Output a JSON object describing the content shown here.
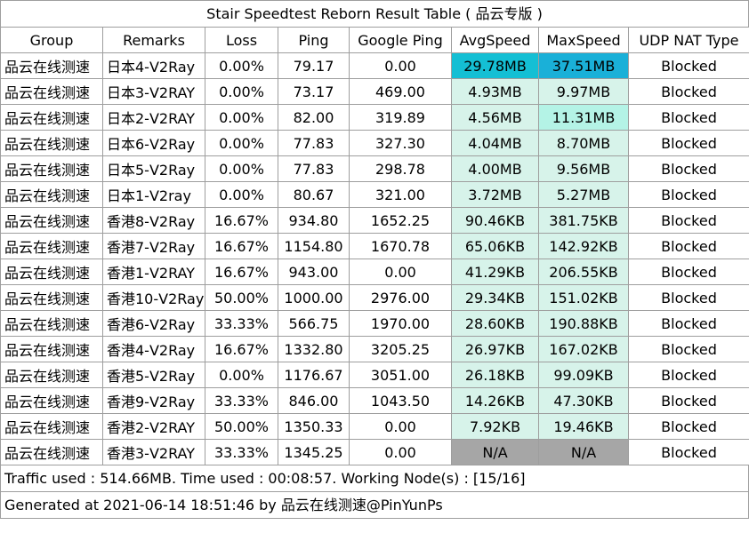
{
  "title": "Stair Speedtest Reborn Result Table ( 品云专版 )",
  "columns": [
    "Group",
    "Remarks",
    "Loss",
    "Ping",
    "Google Ping",
    "AvgSpeed",
    "MaxSpeed",
    "UDP NAT Type"
  ],
  "rows": [
    {
      "group": "品云在线测速",
      "remarks": "日本4-V2Ray",
      "loss": "0.00%",
      "ping": "79.17",
      "google_ping": "0.00",
      "avg_speed": "29.78MB",
      "avg_color": "#14bfd4",
      "max_speed": "37.51MB",
      "max_color": "#1ab0d8",
      "udp": "Blocked"
    },
    {
      "group": "品云在线测速",
      "remarks": "日本3-V2RAY",
      "loss": "0.00%",
      "ping": "73.17",
      "google_ping": "469.00",
      "avg_speed": "4.93MB",
      "avg_color": "#d7f3ea",
      "max_speed": "9.97MB",
      "max_color": "#d7f3ea",
      "udp": "Blocked"
    },
    {
      "group": "品云在线测速",
      "remarks": "日本2-V2RAY",
      "loss": "0.00%",
      "ping": "82.00",
      "google_ping": "319.89",
      "avg_speed": "4.56MB",
      "avg_color": "#d7f3ea",
      "max_speed": "11.31MB",
      "max_color": "#b4f3e6",
      "udp": "Blocked"
    },
    {
      "group": "品云在线测速",
      "remarks": "日本6-V2Ray",
      "loss": "0.00%",
      "ping": "77.83",
      "google_ping": "327.30",
      "avg_speed": "4.04MB",
      "avg_color": "#d7f3ea",
      "max_speed": "8.70MB",
      "max_color": "#d7f3ea",
      "udp": "Blocked"
    },
    {
      "group": "品云在线测速",
      "remarks": "日本5-V2Ray",
      "loss": "0.00%",
      "ping": "77.83",
      "google_ping": "298.78",
      "avg_speed": "4.00MB",
      "avg_color": "#d7f3ea",
      "max_speed": "9.56MB",
      "max_color": "#d7f3ea",
      "udp": "Blocked"
    },
    {
      "group": "品云在线测速",
      "remarks": "日本1-V2ray",
      "loss": "0.00%",
      "ping": "80.67",
      "google_ping": "321.00",
      "avg_speed": "3.72MB",
      "avg_color": "#d7f3ea",
      "max_speed": "5.27MB",
      "max_color": "#d7f3ea",
      "udp": "Blocked"
    },
    {
      "group": "品云在线测速",
      "remarks": "香港8-V2Ray",
      "loss": "16.67%",
      "ping": "934.80",
      "google_ping": "1652.25",
      "avg_speed": "90.46KB",
      "avg_color": "#d7f3ea",
      "max_speed": "381.75KB",
      "max_color": "#d7f3ea",
      "udp": "Blocked"
    },
    {
      "group": "品云在线测速",
      "remarks": "香港7-V2Ray",
      "loss": "16.67%",
      "ping": "1154.80",
      "google_ping": "1670.78",
      "avg_speed": "65.06KB",
      "avg_color": "#d7f3ea",
      "max_speed": "142.92KB",
      "max_color": "#d7f3ea",
      "udp": "Blocked"
    },
    {
      "group": "品云在线测速",
      "remarks": "香港1-V2RAY",
      "loss": "16.67%",
      "ping": "943.00",
      "google_ping": "0.00",
      "avg_speed": "41.29KB",
      "avg_color": "#d7f3ea",
      "max_speed": "206.55KB",
      "max_color": "#d7f3ea",
      "udp": "Blocked"
    },
    {
      "group": "品云在线测速",
      "remarks": "香港10-V2Ray",
      "loss": "50.00%",
      "ping": "1000.00",
      "google_ping": "2976.00",
      "avg_speed": "29.34KB",
      "avg_color": "#d7f3ea",
      "max_speed": "151.02KB",
      "max_color": "#d7f3ea",
      "udp": "Blocked"
    },
    {
      "group": "品云在线测速",
      "remarks": "香港6-V2Ray",
      "loss": "33.33%",
      "ping": "566.75",
      "google_ping": "1970.00",
      "avg_speed": "28.60KB",
      "avg_color": "#d7f3ea",
      "max_speed": "190.88KB",
      "max_color": "#d7f3ea",
      "udp": "Blocked"
    },
    {
      "group": "品云在线测速",
      "remarks": "香港4-V2Ray",
      "loss": "16.67%",
      "ping": "1332.80",
      "google_ping": "3205.25",
      "avg_speed": "26.97KB",
      "avg_color": "#d7f3ea",
      "max_speed": "167.02KB",
      "max_color": "#d7f3ea",
      "udp": "Blocked"
    },
    {
      "group": "品云在线测速",
      "remarks": "香港5-V2Ray",
      "loss": "0.00%",
      "ping": "1176.67",
      "google_ping": "3051.00",
      "avg_speed": "26.18KB",
      "avg_color": "#d7f3ea",
      "max_speed": "99.09KB",
      "max_color": "#d7f3ea",
      "udp": "Blocked"
    },
    {
      "group": "品云在线测速",
      "remarks": "香港9-V2Ray",
      "loss": "33.33%",
      "ping": "846.00",
      "google_ping": "1043.50",
      "avg_speed": "14.26KB",
      "avg_color": "#d7f3ea",
      "max_speed": "47.30KB",
      "max_color": "#d7f3ea",
      "udp": "Blocked"
    },
    {
      "group": "品云在线测速",
      "remarks": "香港2-V2RAY",
      "loss": "50.00%",
      "ping": "1350.33",
      "google_ping": "0.00",
      "avg_speed": "7.92KB",
      "avg_color": "#d7f3ea",
      "max_speed": "19.46KB",
      "max_color": "#d7f3ea",
      "udp": "Blocked"
    },
    {
      "group": "品云在线测速",
      "remarks": "香港3-V2RAY",
      "loss": "33.33%",
      "ping": "1345.25",
      "google_ping": "0.00",
      "avg_speed": "N/A",
      "avg_color": "#a6a6a6",
      "max_speed": "N/A",
      "max_color": "#a6a6a6",
      "udp": "Blocked"
    }
  ],
  "footer": {
    "traffic": "Traffic used : 514.66MB. Time used : 00:08:57. Working Node(s) : [15/16]",
    "generated": "Generated at 2021-06-14 18:51:46 by 品云在线测速@PinYunPs"
  }
}
